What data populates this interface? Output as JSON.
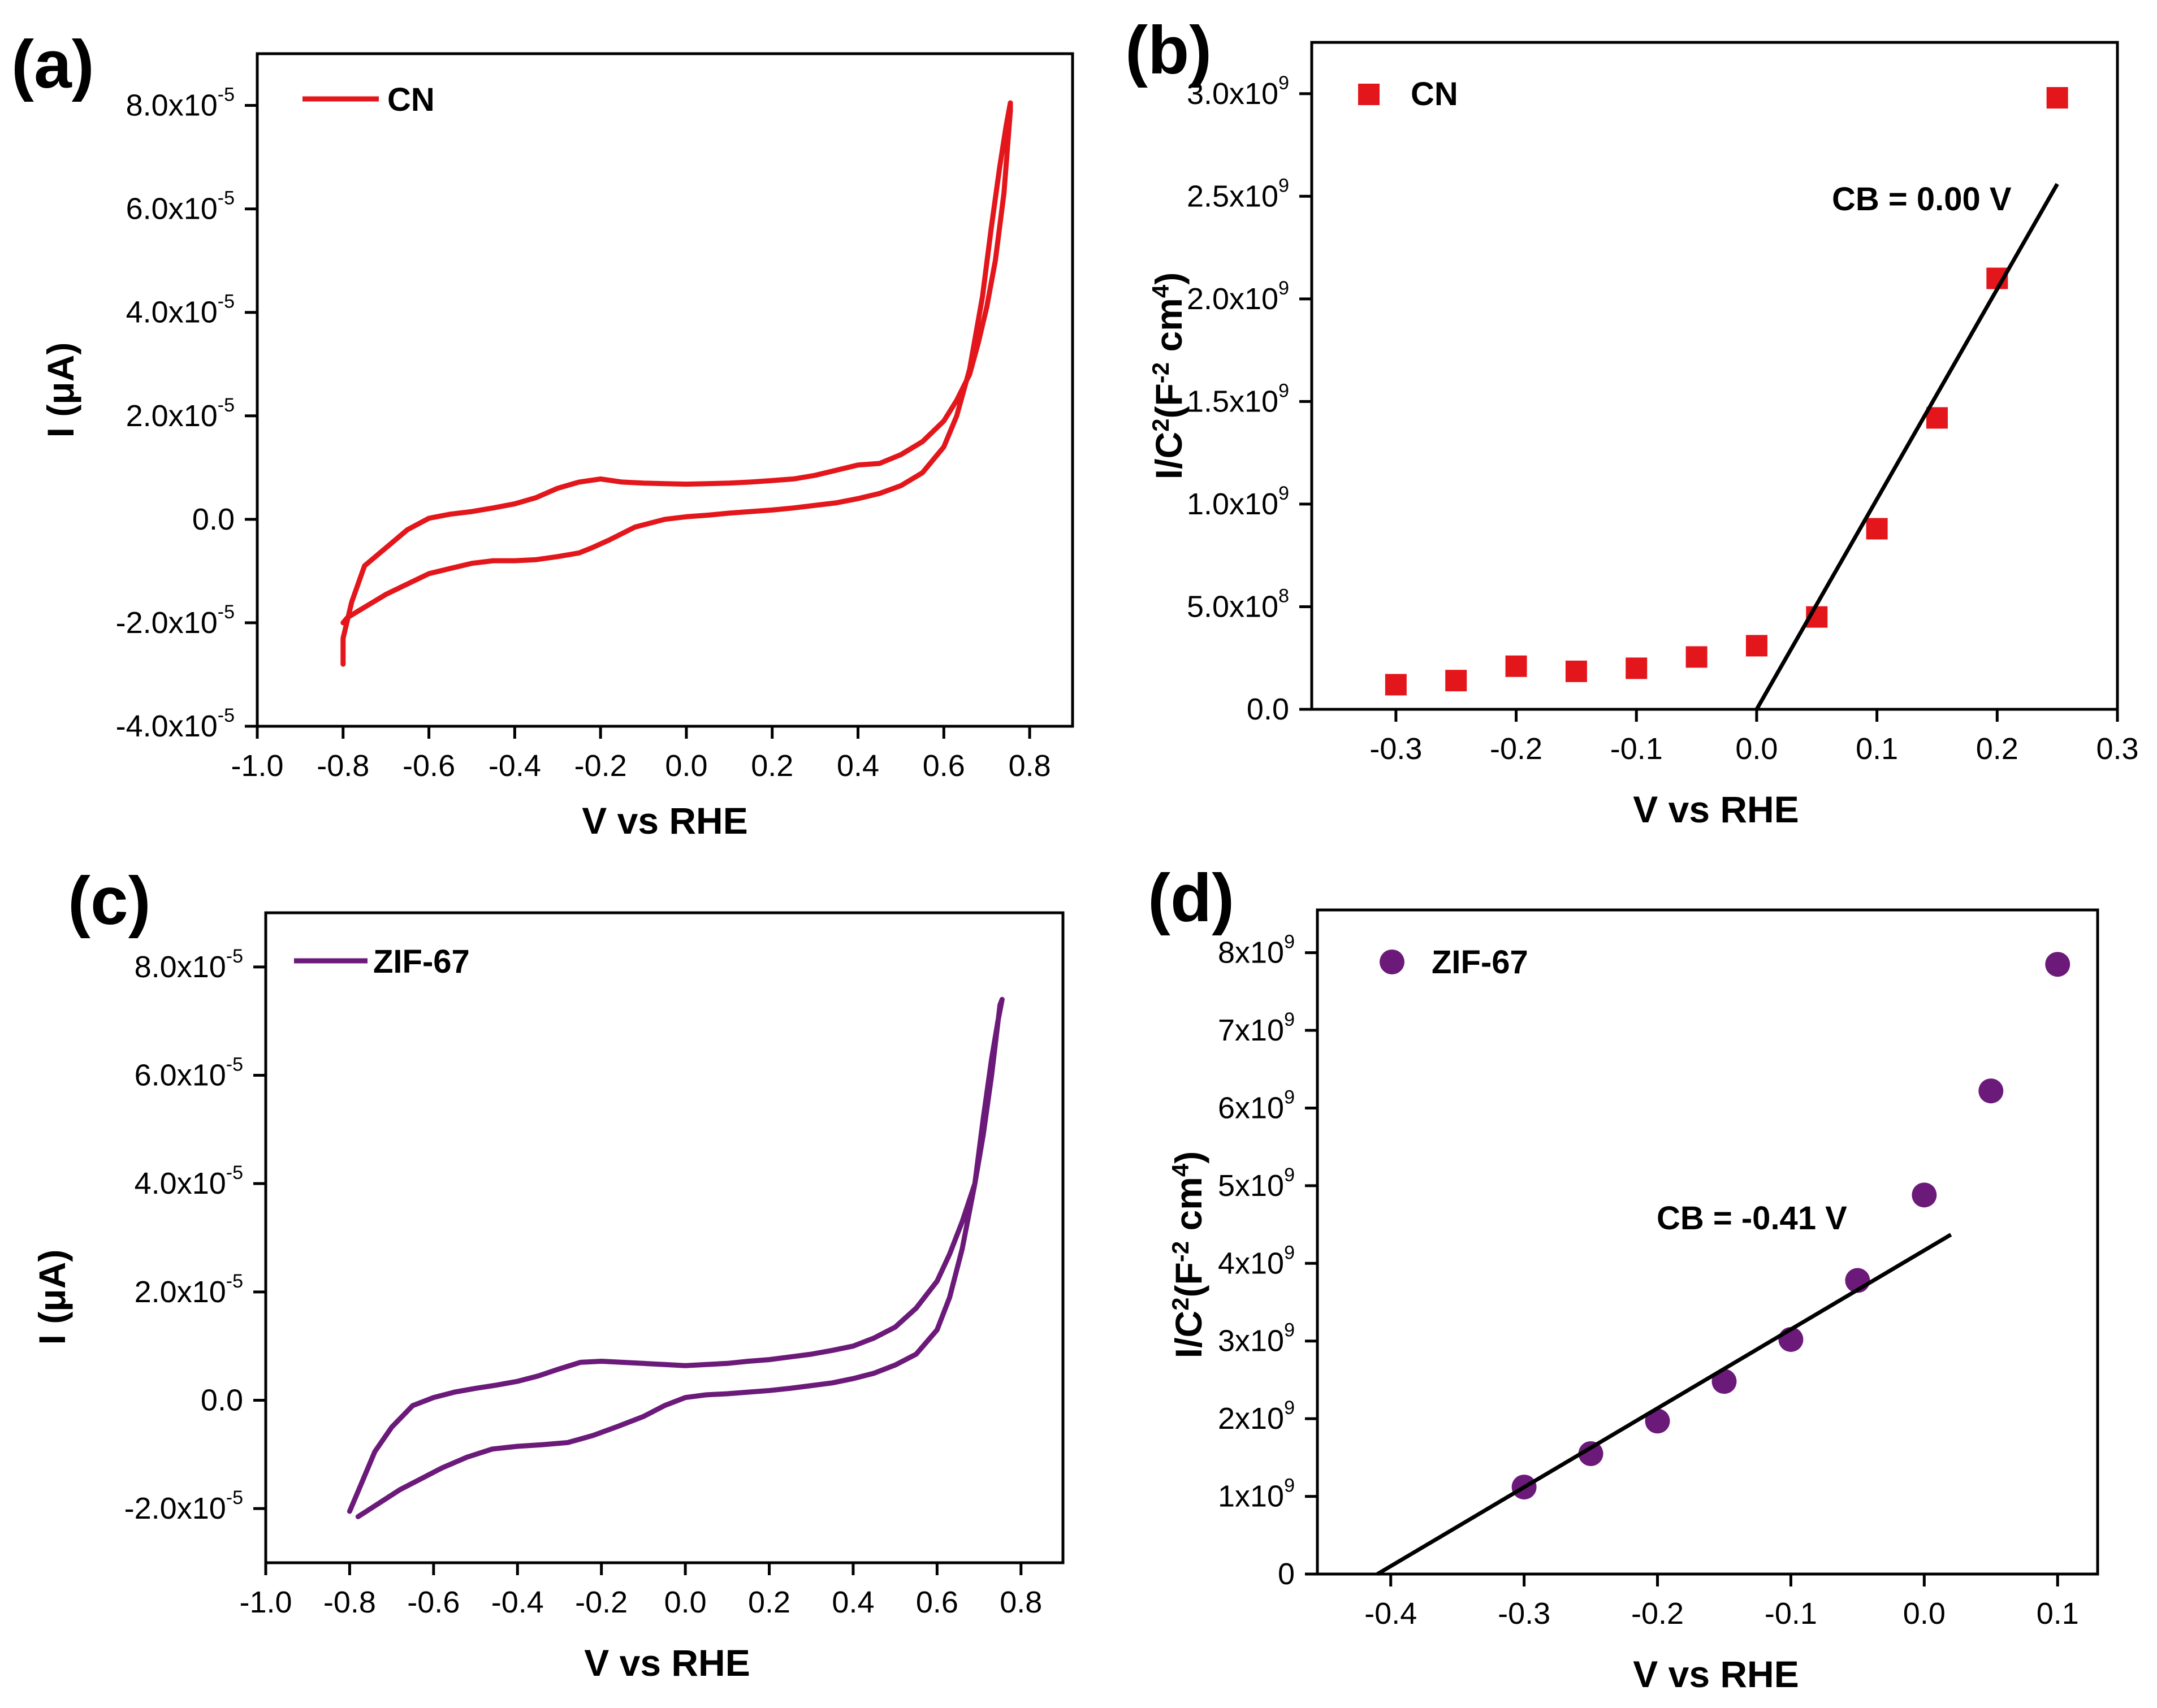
{
  "colors": {
    "cn": "#e3161b",
    "zif": "#6b1a7a",
    "fit": "#000000",
    "axis": "#000000"
  },
  "chart_data": [
    {
      "id": "a",
      "panel_label": "(a)",
      "type": "line",
      "xlabel": "V vs RHE",
      "ylabel": "I (μA)",
      "xlim": [
        -1.0,
        0.9
      ],
      "ylim": [
        -4e-05,
        9e-05
      ],
      "x_ticks": [
        "-1.0",
        "-0.8",
        "-0.6",
        "-0.4",
        "-0.2",
        "0.0",
        "0.2",
        "0.4",
        "0.6",
        "0.8"
      ],
      "y_ticks": [
        {
          "mantissa": "-4.0x10",
          "exp": "-5",
          "value": -4e-05
        },
        {
          "mantissa": "-2.0x10",
          "exp": "-5",
          "value": -2e-05
        },
        {
          "mantissa": "0.0",
          "exp": "",
          "value": 0
        },
        {
          "mantissa": "2.0x10",
          "exp": "-5",
          "value": 2e-05
        },
        {
          "mantissa": "4.0x10",
          "exp": "-5",
          "value": 4e-05
        },
        {
          "mantissa": "6.0x10",
          "exp": "-5",
          "value": 6e-05
        },
        {
          "mantissa": "8.0x10",
          "exp": "-5",
          "value": 8e-05
        }
      ],
      "legend": "CN",
      "series": [
        {
          "name": "CN",
          "x": [
            -0.8,
            -0.79,
            -0.78,
            -0.76,
            -0.73,
            -0.7,
            -0.65,
            -0.6,
            -0.55,
            -0.5,
            -0.45,
            -0.4,
            -0.35,
            -0.3,
            -0.25,
            -0.22,
            -0.18,
            -0.12,
            -0.05,
            0.0,
            0.05,
            0.1,
            0.15,
            0.2,
            0.25,
            0.3,
            0.35,
            0.4,
            0.45,
            0.5,
            0.55,
            0.6,
            0.63,
            0.66,
            0.69,
            0.71,
            0.73,
            0.745,
            0.755,
            0.755,
            0.74,
            0.72,
            0.7,
            0.68,
            0.66,
            0.63,
            0.6,
            0.55,
            0.5,
            0.45,
            0.4,
            0.35,
            0.3,
            0.25,
            0.2,
            0.15,
            0.1,
            0.05,
            0.0,
            -0.05,
            -0.1,
            -0.15,
            -0.2,
            -0.25,
            -0.3,
            -0.35,
            -0.4,
            -0.45,
            -0.5,
            -0.55,
            -0.6,
            -0.65,
            -0.7,
            -0.75,
            -0.78,
            -0.8,
            -0.8
          ],
          "y": [
            -2e-05,
            -1.9e-05,
            -1.85e-05,
            -1.75e-05,
            -1.6e-05,
            -1.45e-05,
            -1.25e-05,
            -1.05e-05,
            -9.5e-06,
            -8.5e-06,
            -8e-06,
            -8e-06,
            -7.8e-06,
            -7.2e-06,
            -6.5e-06,
            -5.5e-06,
            -4e-06,
            -1.5e-06,
            0.0,
            5e-07,
            8e-07,
            1.2e-06,
            1.5e-06,
            1.8e-06,
            2.2e-06,
            2.7e-06,
            3.2e-06,
            4e-06,
            5e-06,
            6.5e-06,
            9e-06,
            1.4e-05,
            2e-05,
            2.9e-05,
            4.3e-05,
            5.6e-05,
            6.8e-05,
            7.6e-05,
            8.05e-05,
            7.9e-05,
            6.3e-05,
            5e-05,
            4.1e-05,
            3.4e-05,
            2.8e-05,
            2.3e-05,
            1.9e-05,
            1.5e-05,
            1.25e-05,
            1.08e-05,
            1.05e-05,
            9.5e-06,
            8.5e-06,
            7.8e-06,
            7.5e-06,
            7.2e-06,
            7e-06,
            6.9e-06,
            6.8e-06,
            6.9e-06,
            7e-06,
            7.2e-06,
            7.8e-06,
            7.2e-06,
            6e-06,
            4.2e-06,
            3e-06,
            2.2e-06,
            1.5e-06,
            1e-06,
            2e-07,
            -2e-06,
            -5.5e-06,
            -9e-06,
            -1.6e-05,
            -2.3e-05,
            -2.8e-05
          ]
        }
      ]
    },
    {
      "id": "b",
      "panel_label": "(b)",
      "type": "scatter",
      "xlabel": "V vs RHE",
      "ylabel": "I/C2(F-2 cm4)",
      "xlim": [
        -0.37,
        0.3
      ],
      "ylim": [
        0,
        3250000000.0
      ],
      "x_ticks": [
        "-0.3",
        "-0.2",
        "-0.1",
        "0.0",
        "0.1",
        "0.2",
        "0.3"
      ],
      "y_ticks": [
        {
          "mantissa": "0.0",
          "exp": "",
          "value": 0
        },
        {
          "mantissa": "5.0x10",
          "exp": "8",
          "value": 500000000.0
        },
        {
          "mantissa": "1.0x10",
          "exp": "9",
          "value": 1000000000.0
        },
        {
          "mantissa": "1.5x10",
          "exp": "9",
          "value": 1500000000.0
        },
        {
          "mantissa": "2.0x10",
          "exp": "9",
          "value": 2000000000.0
        },
        {
          "mantissa": "2.5x10",
          "exp": "9",
          "value": 2500000000.0
        },
        {
          "mantissa": "3.0x10",
          "exp": "9",
          "value": 3000000000.0
        }
      ],
      "legend": "CN",
      "annotation": "CB = 0.00 V",
      "series": [
        {
          "name": "CN",
          "x": [
            -0.3,
            -0.25,
            -0.2,
            -0.15,
            -0.1,
            -0.05,
            0.0,
            0.05,
            0.1,
            0.15,
            0.2,
            0.25
          ],
          "y": [
            120000000.0,
            140000000.0,
            210000000.0,
            185000000.0,
            200000000.0,
            255000000.0,
            310000000.0,
            450000000.0,
            880000000.0,
            1420000000.0,
            2100000000.0,
            2980000000.0
          ]
        }
      ],
      "fit": {
        "x": [
          0.0,
          0.25
        ],
        "y": [
          0.0,
          2560000000.0
        ]
      }
    },
    {
      "id": "c",
      "panel_label": "(c)",
      "type": "line",
      "xlabel": "V vs RHE",
      "ylabel": "I (μA)",
      "xlim": [
        -1.0,
        0.9
      ],
      "ylim": [
        -3e-05,
        9e-05
      ],
      "x_ticks": [
        "-1.0",
        "-0.8",
        "-0.6",
        "-0.4",
        "-0.2",
        "0.0",
        "0.2",
        "0.4",
        "0.6",
        "0.8"
      ],
      "y_ticks": [
        {
          "mantissa": "-2.0x10",
          "exp": "-5",
          "value": -2e-05
        },
        {
          "mantissa": "0.0",
          "exp": "",
          "value": 0
        },
        {
          "mantissa": "2.0x10",
          "exp": "-5",
          "value": 2e-05
        },
        {
          "mantissa": "4.0x10",
          "exp": "-5",
          "value": 4e-05
        },
        {
          "mantissa": "6.0x10",
          "exp": "-5",
          "value": 6e-05
        },
        {
          "mantissa": "8.0x10",
          "exp": "-5",
          "value": 8e-05
        }
      ],
      "legend": "ZIF-67",
      "series": [
        {
          "name": "ZIF-67",
          "x": [
            -0.78,
            -0.76,
            -0.72,
            -0.68,
            -0.63,
            -0.58,
            -0.52,
            -0.46,
            -0.4,
            -0.34,
            -0.28,
            -0.22,
            -0.16,
            -0.1,
            -0.05,
            0.0,
            0.05,
            0.1,
            0.15,
            0.2,
            0.25,
            0.3,
            0.35,
            0.4,
            0.45,
            0.5,
            0.55,
            0.6,
            0.63,
            0.66,
            0.69,
            0.71,
            0.73,
            0.745,
            0.755,
            0.75,
            0.73,
            0.71,
            0.69,
            0.66,
            0.63,
            0.6,
            0.55,
            0.5,
            0.45,
            0.4,
            0.35,
            0.3,
            0.25,
            0.2,
            0.15,
            0.1,
            0.05,
            0.0,
            -0.05,
            -0.1,
            -0.15,
            -0.2,
            -0.25,
            -0.3,
            -0.35,
            -0.4,
            -0.45,
            -0.5,
            -0.55,
            -0.6,
            -0.65,
            -0.7,
            -0.74,
            -0.77,
            -0.8
          ],
          "y": [
            -2.15e-05,
            -2.05e-05,
            -1.85e-05,
            -1.65e-05,
            -1.45e-05,
            -1.25e-05,
            -1.05e-05,
            -9e-06,
            -8.5e-06,
            -8.2e-06,
            -7.8e-06,
            -6.5e-06,
            -4.8e-06,
            -3e-06,
            -1e-06,
            5e-07,
            1e-06,
            1.2e-06,
            1.5e-06,
            1.8e-06,
            2.2e-06,
            2.7e-06,
            3.2e-06,
            4e-06,
            5e-06,
            6.5e-06,
            8.5e-06,
            1.3e-05,
            1.9e-05,
            2.8e-05,
            4e-05,
            5.2e-05,
            6.3e-05,
            7e-05,
            7.4e-05,
            7.3e-05,
            6e-05,
            4.9e-05,
            4e-05,
            3.3e-05,
            2.7e-05,
            2.2e-05,
            1.7e-05,
            1.35e-05,
            1.15e-05,
            1e-05,
            9.2e-06,
            8.5e-06,
            8e-06,
            7.5e-06,
            7.2e-06,
            6.8e-06,
            6.6e-06,
            6.4e-06,
            6.6e-06,
            6.8e-06,
            7e-06,
            7.2e-06,
            7e-06,
            5.8e-06,
            4.5e-06,
            3.5e-06,
            2.8e-06,
            2.2e-06,
            1.5e-06,
            5e-07,
            -1e-06,
            -5e-06,
            -9.5e-06,
            -1.5e-05,
            -2.05e-05
          ]
        }
      ]
    },
    {
      "id": "d",
      "panel_label": "(d)",
      "type": "scatter",
      "xlabel": "V vs RHE",
      "ylabel": "I/C2(F-2 cm4)",
      "xlim": [
        -0.455,
        0.13
      ],
      "ylim": [
        0,
        8550000000.0
      ],
      "x_ticks": [
        "-0.4",
        "-0.3",
        "-0.2",
        "-0.1",
        "0.0",
        "0.1"
      ],
      "y_ticks": [
        {
          "mantissa": "0",
          "exp": "",
          "value": 0
        },
        {
          "mantissa": "1x10",
          "exp": "9",
          "value": 1000000000.0
        },
        {
          "mantissa": "2x10",
          "exp": "9",
          "value": 2000000000.0
        },
        {
          "mantissa": "3x10",
          "exp": "9",
          "value": 3000000000.0
        },
        {
          "mantissa": "4x10",
          "exp": "9",
          "value": 4000000000.0
        },
        {
          "mantissa": "5x10",
          "exp": "9",
          "value": 5000000000.0
        },
        {
          "mantissa": "6x10",
          "exp": "9",
          "value": 6000000000.0
        },
        {
          "mantissa": "7x10",
          "exp": "9",
          "value": 7000000000.0
        },
        {
          "mantissa": "8x10",
          "exp": "9",
          "value": 8000000000.0
        }
      ],
      "legend": "ZIF-67",
      "annotation": "CB = -0.41 V",
      "series": [
        {
          "name": "ZIF-67",
          "x": [
            -0.3,
            -0.25,
            -0.2,
            -0.15,
            -0.1,
            -0.05,
            0.0,
            0.05,
            0.1
          ],
          "y": [
            1120000000.0,
            1550000000.0,
            1970000000.0,
            2480000000.0,
            3020000000.0,
            3780000000.0,
            4880000000.0,
            6220000000.0,
            7850000000.0
          ]
        }
      ],
      "fit": {
        "x": [
          -0.41,
          0.02
        ],
        "y": [
          0.0,
          4370000000.0
        ]
      }
    }
  ]
}
